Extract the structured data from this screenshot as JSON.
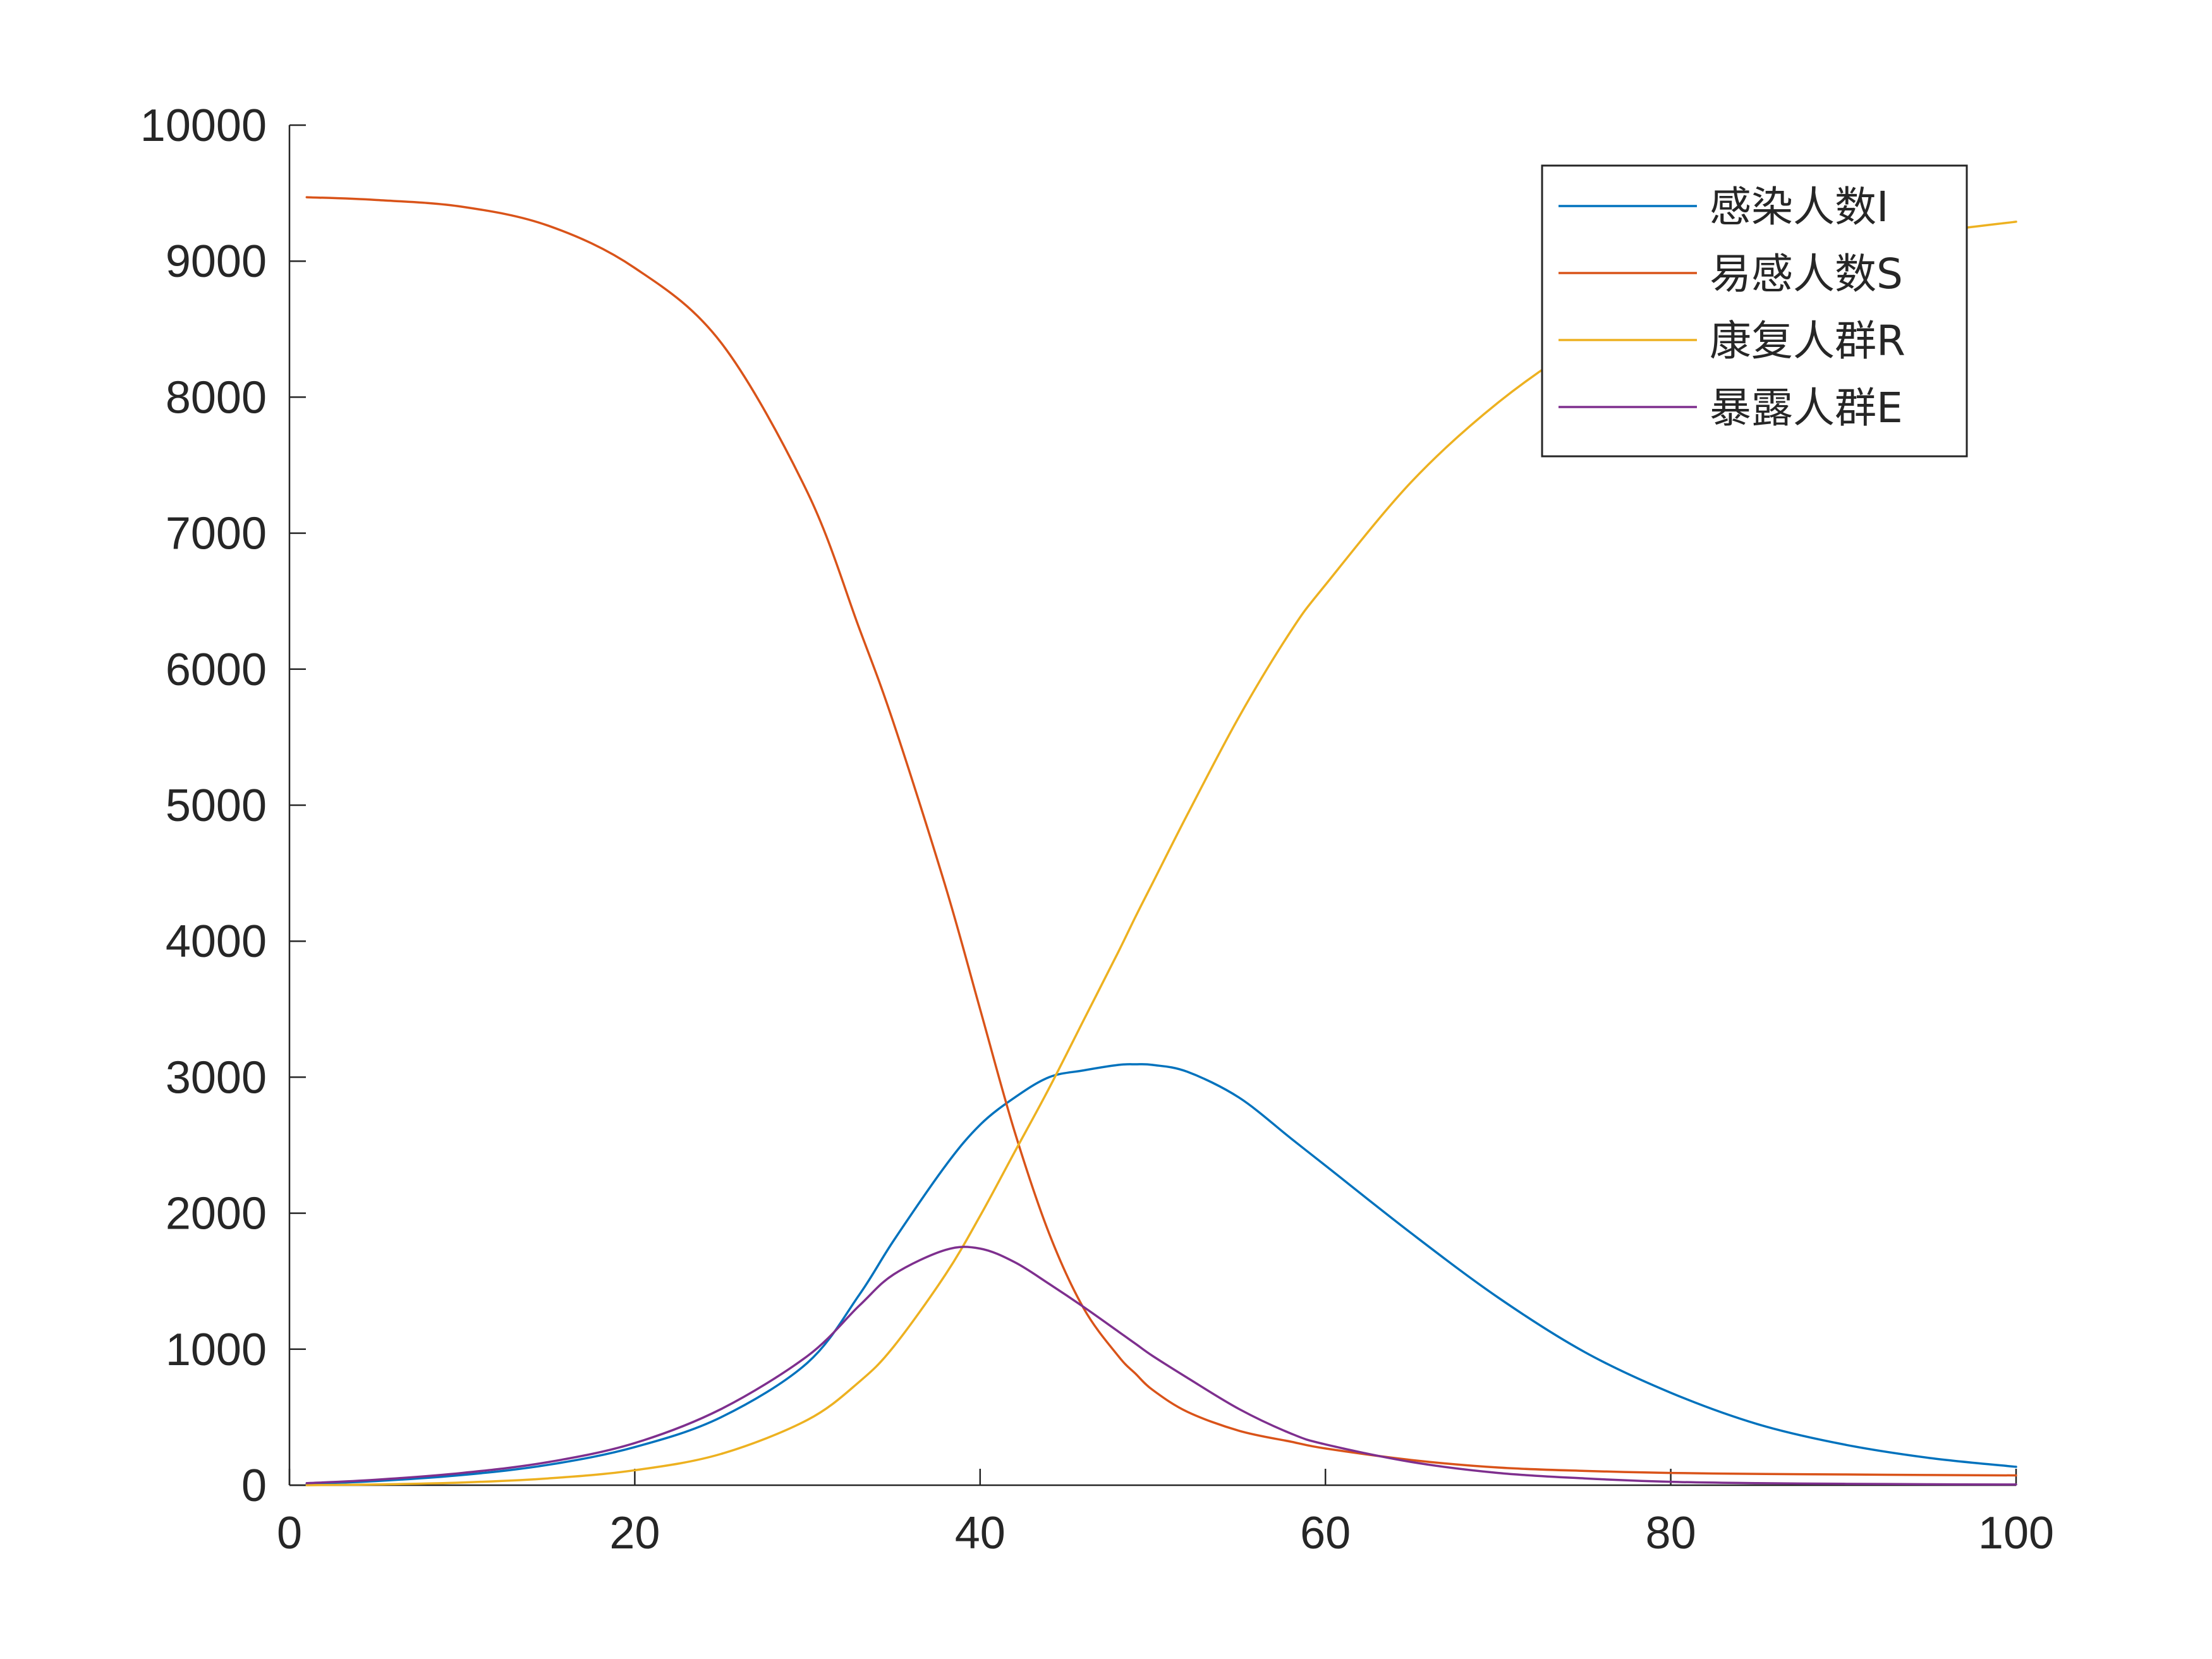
{
  "chart_data": {
    "type": "line",
    "title": "",
    "xlabel": "",
    "ylabel": "",
    "xlim": [
      0,
      100
    ],
    "ylim": [
      0,
      10000
    ],
    "xticks": [
      0,
      20,
      40,
      60,
      80,
      100
    ],
    "yticks": [
      0,
      1000,
      2000,
      3000,
      4000,
      5000,
      6000,
      7000,
      8000,
      9000,
      10000
    ],
    "grid": false,
    "legend_position": "top-right",
    "x": [
      1,
      5,
      10,
      15,
      20,
      25,
      30,
      33,
      35,
      38,
      40,
      42,
      44,
      46,
      48,
      49,
      50,
      52,
      55,
      58,
      60,
      65,
      70,
      75,
      80,
      85,
      90,
      95,
      100
    ],
    "series": [
      {
        "name": "感染人数I",
        "color": "#0072BD",
        "values": [
          10,
          30,
          75,
          150,
          280,
          500,
          900,
          1400,
          1800,
          2350,
          2650,
          2850,
          3000,
          3050,
          3090,
          3095,
          3090,
          3040,
          2850,
          2550,
          2350,
          1850,
          1380,
          980,
          680,
          450,
          300,
          200,
          135
        ]
      },
      {
        "name": "易感人数S",
        "color": "#D95319",
        "values": [
          9470,
          9450,
          9400,
          9260,
          8950,
          8400,
          7300,
          6300,
          5600,
          4400,
          3500,
          2600,
          1850,
          1300,
          950,
          820,
          700,
          540,
          400,
          320,
          270,
          185,
          130,
          105,
          90,
          83,
          79,
          75,
          72
        ]
      },
      {
        "name": "康复人群R",
        "color": "#EDB120",
        "values": [
          0,
          5,
          20,
          50,
          110,
          230,
          480,
          760,
          1020,
          1550,
          1980,
          2450,
          2920,
          3420,
          3920,
          4180,
          4430,
          4930,
          5650,
          6280,
          6620,
          7380,
          7960,
          8400,
          8720,
          8950,
          9100,
          9210,
          9290
        ]
      },
      {
        "name": "暴露人群E",
        "color": "#7E2F8E",
        "values": [
          15,
          40,
          90,
          170,
          310,
          560,
          950,
          1320,
          1550,
          1730,
          1740,
          1640,
          1480,
          1310,
          1130,
          1040,
          950,
          790,
          560,
          380,
          300,
          170,
          90,
          50,
          25,
          15,
          10,
          7,
          5
        ]
      }
    ]
  }
}
